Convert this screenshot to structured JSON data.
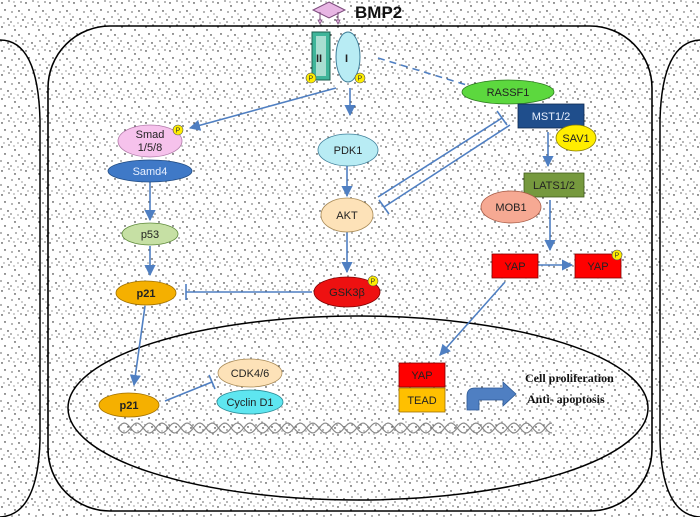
{
  "ligand": {
    "label": "BMP2"
  },
  "receptors": {
    "type2": "II",
    "type1": "I",
    "phospho": "P"
  },
  "nodes": {
    "smad": {
      "line1": "Smad",
      "line2": "1/5/8"
    },
    "samd4": "Samd4",
    "p53": "p53",
    "p21_cytoplasm": "p21",
    "pdk1": "PDK1",
    "akt": "AKT",
    "gsk3b": "GSK3β",
    "rassf1": "RASSF1",
    "mst12": "MST1/2",
    "sav1": "SAV1",
    "lats12": "LATS1/2",
    "mob1": "MOB1",
    "yap": "YAP",
    "yap_p": "YAP",
    "yap_nuclear": "YAP",
    "tead": "TEAD",
    "p21_nucleus": "p21",
    "cdk46": "CDK4/6",
    "cyclin_d1": "Cyclin D1"
  },
  "outcomes": {
    "line1": "Cell proliferation",
    "line2": "Anti- apoptosis"
  },
  "colors": {
    "arrow": "#4f7fc2",
    "smad": "#f6c2ec",
    "samd4": "#3f79c7",
    "p53": "#c6e0a4",
    "p21": "#f5b000",
    "pdk1": "#b8ecf4",
    "akt": "#fde2b8",
    "gsk3b": "#ee1111",
    "rassf1": "#5cd83e",
    "mst12": "#1f4e8c",
    "sav1": "#ffee00",
    "lats12": "#76993e",
    "mob1": "#f6a993",
    "yap": "#ff0000",
    "tead": "#ffc000",
    "cdk46": "#fde2b8",
    "cyclin_d1": "#5ee6f0",
    "phospho": "#ffee00"
  }
}
